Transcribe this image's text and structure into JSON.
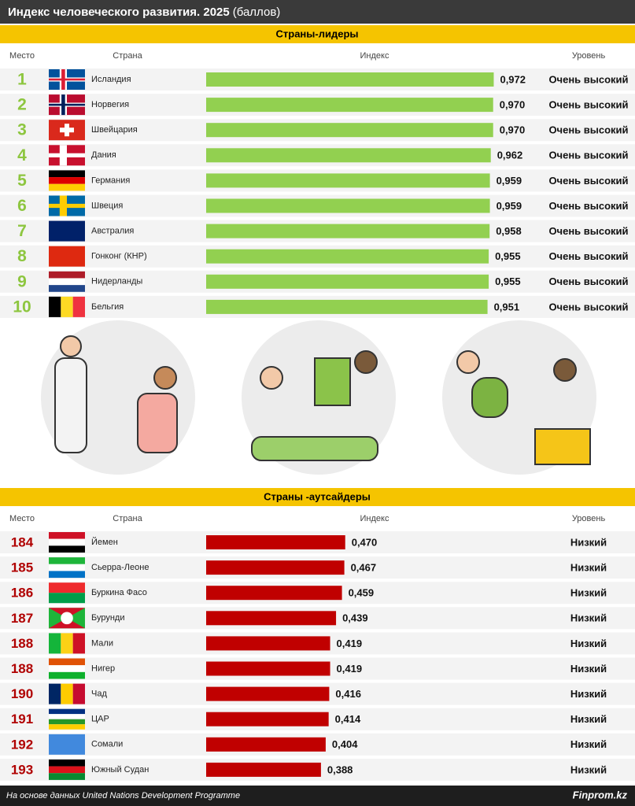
{
  "header": {
    "title": "Индекс человеческого развития. 2025",
    "unit": "(баллов)"
  },
  "chart_data": [
    {
      "type": "bar",
      "section_title": "Страны-лидеры",
      "column_headers": [
        "Место",
        "Страна",
        "Индекс",
        "Уровень"
      ],
      "ranks": [
        "1",
        "2",
        "3",
        "4",
        "5",
        "6",
        "7",
        "8",
        "9",
        "10"
      ],
      "categories": [
        "Исландия",
        "Норвегия",
        "Швейцария",
        "Дания",
        "Германия",
        "Швеция",
        "Австралия",
        "Гонконг (КНР)",
        "Нидерланды",
        "Бельгия"
      ],
      "values": [
        0.972,
        0.97,
        0.97,
        0.962,
        0.959,
        0.959,
        0.958,
        0.955,
        0.955,
        0.951
      ],
      "value_labels": [
        "0,972",
        "0,970",
        "0,970",
        "0,962",
        "0,959",
        "0,959",
        "0,958",
        "0,955",
        "0,955",
        "0,951"
      ],
      "levels": [
        "Очень высокий",
        "Очень высокий",
        "Очень высокий",
        "Очень высокий",
        "Очень высокий",
        "Очень высокий",
        "Очень высокий",
        "Очень высокий",
        "Очень высокий",
        "Очень высокий"
      ],
      "color": "#92d050",
      "rank_color": "#8dc63f"
    },
    {
      "type": "bar",
      "section_title": "Страны -аутсайдеры",
      "column_headers": [
        "Место",
        "Страна",
        "Индекс",
        "Уровень"
      ],
      "ranks": [
        "184",
        "185",
        "186",
        "187",
        "188",
        "188",
        "190",
        "191",
        "192",
        "193"
      ],
      "categories": [
        "Йемен",
        "Сьерра-Леоне",
        "Буркина Фасо",
        "Бурунди",
        "Мали",
        "Нигер",
        "Чад",
        "ЦАР",
        "Сомали",
        "Южный Судан"
      ],
      "values": [
        0.47,
        0.467,
        0.459,
        0.439,
        0.419,
        0.419,
        0.416,
        0.414,
        0.404,
        0.388
      ],
      "value_labels": [
        "0,470",
        "0,467",
        "0,459",
        "0,439",
        "0,419",
        "0,419",
        "0,416",
        "0,414",
        "0,404",
        "0,388"
      ],
      "levels": [
        "Низкий",
        "Низкий",
        "Низкий",
        "Низкий",
        "Низкий",
        "Низкий",
        "Низкий",
        "Низкий",
        "Низкий",
        "Низкий"
      ],
      "color": "#c00000",
      "rank_color": "#b00000"
    }
  ],
  "footer": {
    "source": "На основе данных United Nations Development Programme",
    "brand": "Finprom.kz"
  }
}
